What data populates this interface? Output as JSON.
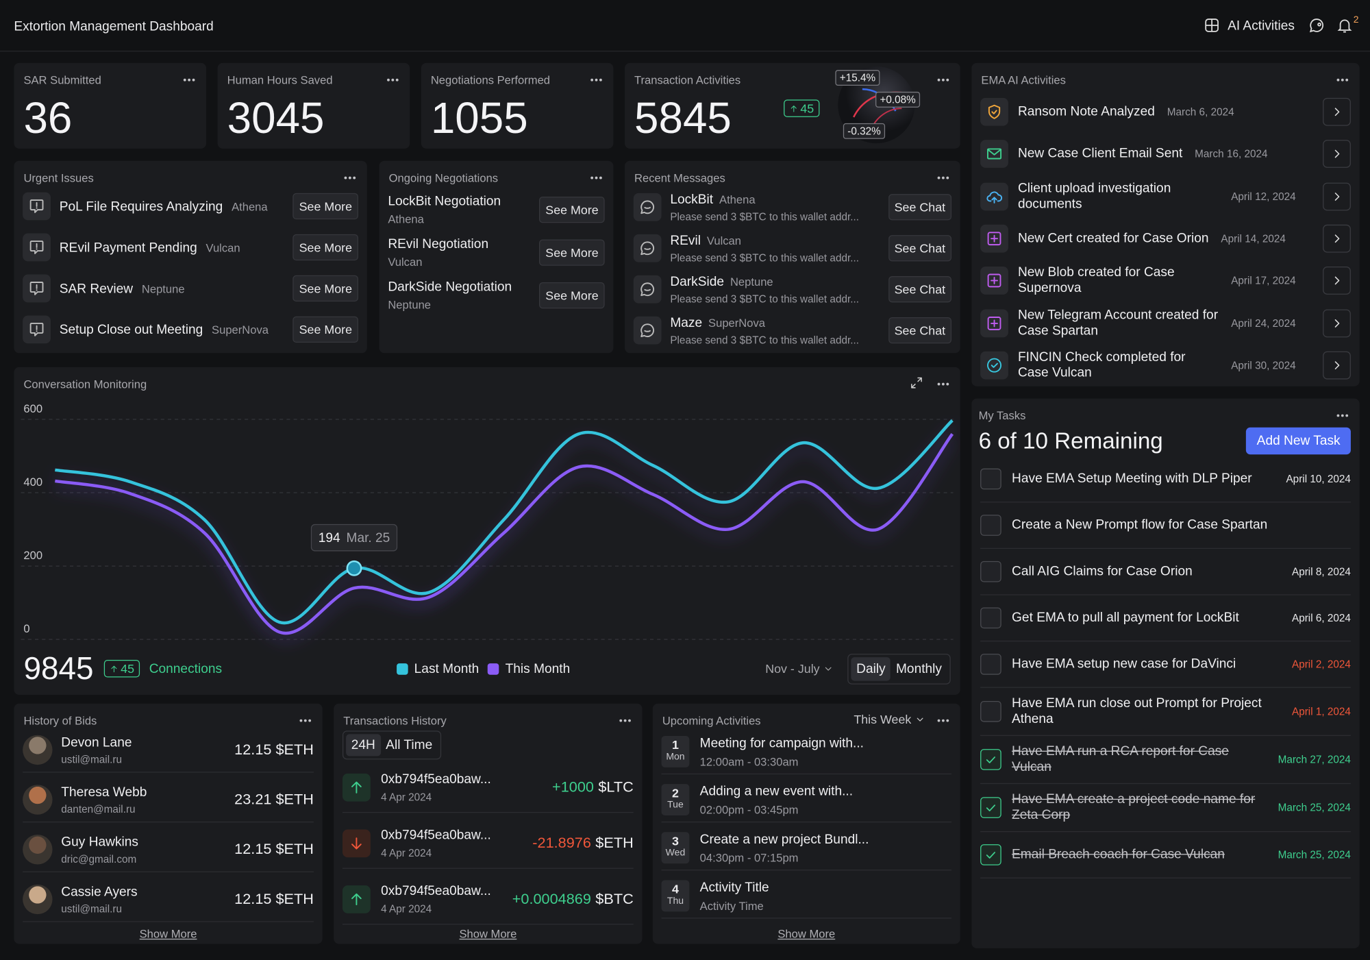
{
  "header": {
    "title": "Extortion Management Dashboard",
    "ai_activities": "AI Activities",
    "notification_count": 2
  },
  "stats": [
    {
      "label": "SAR Submitted",
      "value": 36
    },
    {
      "label": "Human Hours Saved",
      "value": 3045
    },
    {
      "label": "Negotiations Performed",
      "value": 1055
    },
    {
      "label": "Transaction Activities",
      "value": 5845,
      "change": 45,
      "globe_labels": [
        "+15.4%",
        "+0.08%",
        "-0.32%"
      ]
    }
  ],
  "urgent_issues": {
    "title": "Urgent Issues",
    "items": [
      {
        "title": "PoL File Requires Analyzing",
        "client": "Athena",
        "action": "See More"
      },
      {
        "title": "REvil Payment Pending",
        "client": "Vulcan",
        "action": "See More"
      },
      {
        "title": "SAR Review",
        "client": "Neptune",
        "action": "See More"
      },
      {
        "title": "Setup Close out Meeting",
        "client": "SuperNova",
        "action": "See More"
      }
    ]
  },
  "ongoing_negotiations": {
    "title": "Ongoing Negotiations",
    "items": [
      {
        "title": "LockBit Negotiation",
        "client": "Athena",
        "action": "See More"
      },
      {
        "title": "REvil Negotiation",
        "client": "Vulcan",
        "action": "See More"
      },
      {
        "title": "DarkSide Negotiation",
        "client": "Neptune",
        "action": "See More"
      }
    ]
  },
  "recent_messages": {
    "title": "Recent Messages",
    "items": [
      {
        "sender": "LockBit",
        "client": "Athena",
        "preview": "Please send 3 $BTC to this wallet addr...",
        "action": "See Chat"
      },
      {
        "sender": "REvil",
        "client": "Vulcan",
        "preview": "Please send 3 $BTC to this wallet addr...",
        "action": "See Chat"
      },
      {
        "sender": "DarkSide",
        "client": "Neptune",
        "preview": "Please send 3 $BTC to this wallet addr...",
        "action": "See Chat"
      },
      {
        "sender": "Maze",
        "client": "SuperNova",
        "preview": "Please send 3 $BTC to this wallet addr...",
        "action": "See Chat"
      }
    ]
  },
  "chart_data": {
    "type": "line",
    "title": "Conversation Monitoring",
    "categories": [
      null,
      null,
      null,
      null,
      "Mar. 25",
      null,
      null,
      null,
      null,
      null,
      null,
      null,
      null
    ],
    "series": [
      {
        "name": "Last Month",
        "color": "#35c3dc",
        "values": [
          462,
          430,
          326,
          47,
          194,
          128,
          326,
          560,
          474,
          375,
          536,
          412,
          597
        ]
      },
      {
        "name": "This Month",
        "color": "#8b5cf6",
        "values": [
          432,
          398,
          290,
          20,
          140,
          115,
          290,
          470,
          395,
          300,
          430,
          300,
          560
        ]
      }
    ],
    "ylim": [
      -20,
      640
    ],
    "yticks": [
      0,
      200,
      400,
      600
    ],
    "grid": true,
    "total": 9845,
    "change": 45,
    "total_label": "Connections",
    "range": "Nov - July",
    "views": [
      "Daily",
      "Monthly"
    ]
  },
  "ema_activities": {
    "title": "EMA AI Activities",
    "items": [
      {
        "title": "Ransom Note Analyzed",
        "date": "March 6, 2024"
      },
      {
        "title": "New Case Client Email Sent",
        "date": "March 16, 2024"
      },
      {
        "title": "Client upload investigation documents",
        "date": "April 12, 2024"
      },
      {
        "title": "New Cert created for Case Orion",
        "date": "April 14, 2024"
      },
      {
        "title": "New Blob created for Case Supernova",
        "date": "April 17, 2024"
      },
      {
        "title": "New Telegram Account created for Case Spartan",
        "date": "April 24, 2024"
      },
      {
        "title": "FINCIN Check completed for Case Vulcan",
        "date": "April 30, 2024"
      }
    ]
  },
  "tasks": {
    "title": "My Tasks",
    "summary": "6 of 10 Remaining",
    "action": "Add New Task",
    "items": [
      {
        "text": "Have EMA Setup Meeting with DLP Piper",
        "date": "April 10, 2024",
        "status": "open"
      },
      {
        "text": "Create a New Prompt flow for Case Spartan",
        "status": "open"
      },
      {
        "text": "Call AIG Claims for Case Orion",
        "date": "April 8, 2024",
        "status": "open"
      },
      {
        "text": "Get EMA to pull all payment for LockBit",
        "date": "April 6, 2024",
        "status": "open"
      },
      {
        "text": "Have EMA setup new case for  DaVinci",
        "date": "April 2, 2024",
        "status": "overdue"
      },
      {
        "text": "Have EMA run close out Prompt for Project Athena",
        "date": "April 1, 2024",
        "status": "overdue"
      },
      {
        "text": "Have EMA run a RCA report for Case Vulcan",
        "date": "March 27, 2024",
        "status": "done"
      },
      {
        "text": "Have EMA create a project code name for Zeta Corp",
        "date": "March 25, 2024",
        "status": "done"
      },
      {
        "text": "Email Breach coach for Case Vulcan",
        "date": "March 25, 2024",
        "status": "done"
      }
    ]
  },
  "bids": {
    "title": "History of Bids",
    "items": [
      {
        "name": "Devon Lane",
        "email": "ustil@mail.ru",
        "amount": "12.15 $ETH"
      },
      {
        "name": "Theresa Webb",
        "email": "danten@mail.ru",
        "amount": "23.21 $ETH"
      },
      {
        "name": "Guy Hawkins",
        "email": "dric@gmail.com",
        "amount": "12.15 $ETH"
      },
      {
        "name": "Cassie Ayers",
        "email": "ustil@mail.ru",
        "amount": "12.15 $ETH"
      }
    ],
    "more": "Show More"
  },
  "transactions": {
    "title": "Transactions History",
    "filters": [
      "24H",
      "All Time"
    ],
    "items": [
      {
        "id": "0xb794f5ea0baw...",
        "date": "4 Apr 2024",
        "amount": "+1000",
        "currency": "$LTC",
        "direction": "in"
      },
      {
        "id": "0xb794f5ea0baw...",
        "date": "4 Apr 2024",
        "amount": "-21.8976",
        "currency": "$ETH",
        "direction": "out"
      },
      {
        "id": "0xb794f5ea0baw...",
        "date": "4 Apr 2024",
        "amount": "+0.0004869",
        "currency": "$BTC",
        "direction": "in"
      }
    ],
    "more": "Show More"
  },
  "upcoming": {
    "title": "Upcoming Activities",
    "period": "This Week",
    "items": [
      {
        "day": 1,
        "weekday": "Mon",
        "title": "Meeting for campaign with...",
        "time": "12:00am - 03:30am"
      },
      {
        "day": 2,
        "weekday": "Tue",
        "title": "Adding a new event with...",
        "time": "02:00pm - 03:45pm"
      },
      {
        "day": 3,
        "weekday": "Wed",
        "title": "Create a new project Bundl...",
        "time": "04:30pm - 07:15pm"
      },
      {
        "day": 4,
        "weekday": "Thu",
        "title": "Activity Title",
        "time": "Activity Time"
      }
    ],
    "more": "Show More"
  }
}
